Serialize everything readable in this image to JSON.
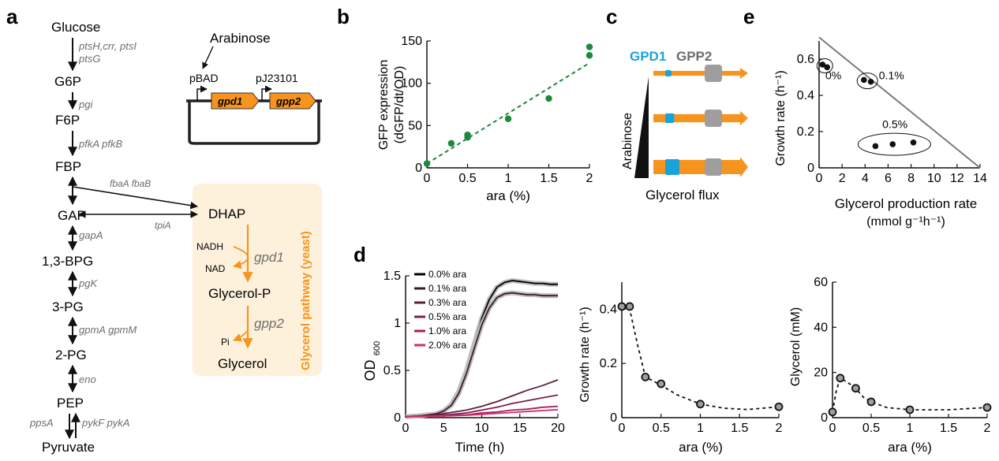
{
  "panels": {
    "a": "a",
    "b": "b",
    "c": "c",
    "d": "d",
    "e": "e"
  },
  "pathway": {
    "metabolites": [
      "Glucose",
      "G6P",
      "F6P",
      "FBP",
      "GAP",
      "1,3-BPG",
      "3-PG",
      "2-PG",
      "PEP",
      "Pyruvate"
    ],
    "enzymes": [
      "ptsH,crr, ptsI",
      "ptsG",
      "pgi",
      "pfkA pfkB",
      "gapA",
      "pgK",
      "gpmA gpmM",
      "eno",
      "ppsA",
      "pykF  pykA"
    ],
    "fba": "fbaA fbaB",
    "tpi": "tpiA",
    "dhap": "DHAP",
    "nadh": "NADH",
    "nad": "NAD",
    "gpd1": "gpd1",
    "glycerol_p": "Glycerol-P",
    "pi": "Pi",
    "gpp2": "gpp2",
    "glycerol": "Glycerol",
    "yeast_label": "Glycerol pathway (yeast)"
  },
  "plasmid": {
    "inducer": "Arabinose",
    "promoter1": "pBAD",
    "promoter2": "pJ23101",
    "gene1": "gpd1",
    "gene2": "gpp2"
  },
  "colors": {
    "green": "#1a8a3c",
    "orange": "#f7941d",
    "yeast_bg": "#fdf1dc",
    "gpd1_blue": "#1aa3d9",
    "gpp2_gray": "#9e9e9e",
    "enzyme_gray": "#6d6d6d",
    "line_gray": "#7a7a7a",
    "magenta_dark": "#5a1a3c",
    "magenta": "#c2185b"
  },
  "panel_c": {
    "gpd1_label": "GPD1",
    "gpp2_label": "GPP2",
    "arabinose_label": "Arabinose",
    "flux_label": "Glycerol flux",
    "gpd1_levels": [
      0.15,
      0.45,
      1.0
    ]
  },
  "chart_data": [
    {
      "id": "b",
      "type": "scatter",
      "ylabel_line1": "GFP expression",
      "ylabel_line2": "(dGFP/dt/OD)",
      "xlabel": "ara (%)",
      "xlim": [
        0,
        2
      ],
      "ylim": [
        0,
        150
      ],
      "xticks": [
        "0",
        "0.5",
        "1",
        "1.5",
        "2"
      ],
      "xtick_values": [
        0,
        0.5,
        1,
        1.5,
        2
      ],
      "yticks": [
        "0",
        "50",
        "100",
        "150"
      ],
      "ytick_values": [
        0,
        50,
        100,
        150
      ],
      "points": [
        [
          0,
          5
        ],
        [
          0.3,
          29
        ],
        [
          0.5,
          36
        ],
        [
          0.5,
          39
        ],
        [
          1,
          58
        ],
        [
          1.5,
          82
        ],
        [
          2,
          133
        ],
        [
          2,
          143
        ]
      ],
      "fit": [
        [
          0,
          5
        ],
        [
          2,
          124
        ]
      ]
    },
    {
      "id": "e",
      "type": "scatter",
      "ylabel": "Growth rate (h⁻¹)",
      "xlabel_line1": "Glycerol production rate",
      "xlabel_line2": "(mmol g⁻¹h⁻¹)",
      "xlim": [
        0,
        14
      ],
      "ylim": [
        0,
        0.7
      ],
      "xticks": [
        "0",
        "2",
        "4",
        "6",
        "8",
        "10",
        "12",
        "14"
      ],
      "xtick_values": [
        0,
        2,
        4,
        6,
        8,
        10,
        12,
        14
      ],
      "yticks": [
        "0",
        "0.2",
        "0.4",
        "0.6"
      ],
      "ytick_values": [
        0,
        0.2,
        0.4,
        0.6
      ],
      "points": [
        [
          0.3,
          0.57
        ],
        [
          0.7,
          0.555
        ],
        [
          3.9,
          0.485
        ],
        [
          4.5,
          0.475
        ],
        [
          4.9,
          0.12
        ],
        [
          6.4,
          0.13
        ],
        [
          8.2,
          0.14
        ]
      ],
      "line": [
        [
          0,
          0.72
        ],
        [
          14,
          0
        ]
      ],
      "groups": [
        "0%",
        "0.1%",
        "0.5%"
      ]
    },
    {
      "id": "d1",
      "type": "line",
      "ylabel": "OD",
      "ylabel_sub": "600",
      "xlabel": "Time (h)",
      "xlim": [
        0,
        20
      ],
      "ylim": [
        0,
        1.5
      ],
      "xticks": [
        "0",
        "5",
        "10",
        "15",
        "20"
      ],
      "xtick_values": [
        0,
        5,
        10,
        15,
        20
      ],
      "yticks": [
        "0",
        "0.5",
        "1",
        "1.5"
      ],
      "ytick_values": [
        0,
        0.5,
        1,
        1.5
      ],
      "series": [
        {
          "name": "0.0% ara",
          "color": "#000000",
          "x": [
            0,
            2,
            4,
            5,
            6,
            7,
            8,
            9,
            10,
            11,
            12,
            13,
            14,
            15,
            16,
            17,
            18,
            19,
            20
          ],
          "values": [
            0.01,
            0.02,
            0.04,
            0.07,
            0.14,
            0.28,
            0.5,
            0.78,
            1.05,
            1.25,
            1.38,
            1.43,
            1.45,
            1.44,
            1.43,
            1.42,
            1.42,
            1.41,
            1.41
          ]
        },
        {
          "name": "0.1% ara",
          "color": "#3a1a2a",
          "x": [
            0,
            2,
            4,
            5,
            6,
            7,
            8,
            9,
            10,
            11,
            12,
            13,
            14,
            15,
            16,
            17,
            18,
            19,
            20
          ],
          "values": [
            0.01,
            0.02,
            0.04,
            0.07,
            0.13,
            0.26,
            0.47,
            0.73,
            0.98,
            1.16,
            1.27,
            1.31,
            1.32,
            1.31,
            1.3,
            1.3,
            1.29,
            1.29,
            1.29
          ]
        },
        {
          "name": "0.3% ara",
          "color": "#5c1e3e",
          "x": [
            0,
            4,
            8,
            10,
            12,
            14,
            16,
            18,
            20
          ],
          "values": [
            0.01,
            0.03,
            0.08,
            0.12,
            0.17,
            0.23,
            0.29,
            0.34,
            0.4
          ]
        },
        {
          "name": "0.5% ara",
          "color": "#7d1f4c",
          "x": [
            0,
            4,
            8,
            10,
            12,
            14,
            16,
            18,
            20
          ],
          "values": [
            0.01,
            0.02,
            0.05,
            0.08,
            0.11,
            0.15,
            0.18,
            0.21,
            0.24
          ]
        },
        {
          "name": "1.0% ara",
          "color": "#a5215a",
          "x": [
            0,
            4,
            8,
            10,
            12,
            14,
            16,
            18,
            20
          ],
          "values": [
            0.01,
            0.02,
            0.03,
            0.05,
            0.06,
            0.08,
            0.09,
            0.11,
            0.12
          ]
        },
        {
          "name": "2.0% ara",
          "color": "#cf2e6e",
          "x": [
            0,
            4,
            8,
            10,
            12,
            14,
            16,
            18,
            20
          ],
          "values": [
            0.01,
            0.015,
            0.025,
            0.035,
            0.045,
            0.055,
            0.065,
            0.075,
            0.085
          ]
        }
      ]
    },
    {
      "id": "d2",
      "type": "line",
      "ylabel": "Growth rate (h⁻¹)",
      "xlabel": "ara (%)",
      "xlim": [
        0,
        2
      ],
      "ylim": [
        0,
        0.5
      ],
      "xticks": [
        "0",
        "0.5",
        "1",
        "1.5",
        "2"
      ],
      "xtick_values": [
        0,
        0.5,
        1,
        1.5,
        2
      ],
      "yticks": [
        "0",
        "0.2",
        "0.4"
      ],
      "ytick_values": [
        0,
        0.2,
        0.4
      ],
      "points": [
        [
          0,
          0.41
        ],
        [
          0.1,
          0.41
        ],
        [
          0.3,
          0.15
        ],
        [
          0.5,
          0.125
        ],
        [
          1,
          0.05
        ],
        [
          2,
          0.04
        ]
      ],
      "curve": [
        [
          0,
          0.41
        ],
        [
          0.1,
          0.4
        ],
        [
          0.2,
          0.27
        ],
        [
          0.3,
          0.15
        ],
        [
          0.5,
          0.12
        ],
        [
          0.7,
          0.085
        ],
        [
          1,
          0.05
        ],
        [
          1.3,
          0.035
        ],
        [
          1.6,
          0.03
        ],
        [
          2,
          0.04
        ]
      ]
    },
    {
      "id": "d3",
      "type": "line",
      "ylabel": "Glycerol (mM)",
      "xlabel": "ara (%)",
      "xlim": [
        0,
        2
      ],
      "ylim": [
        0,
        60
      ],
      "xticks": [
        "0",
        "0.5",
        "1",
        "1.5",
        "2"
      ],
      "xtick_values": [
        0,
        0.5,
        1,
        1.5,
        2
      ],
      "yticks": [
        "0",
        "20",
        "40",
        "60"
      ],
      "ytick_values": [
        0,
        20,
        40,
        60
      ],
      "points": [
        [
          0,
          2.5
        ],
        [
          0.1,
          17.5
        ],
        [
          0.3,
          13
        ],
        [
          0.5,
          7
        ],
        [
          1,
          3.5
        ],
        [
          2,
          4.5
        ]
      ],
      "curve": [
        [
          0,
          2.5
        ],
        [
          0.05,
          12
        ],
        [
          0.1,
          17.5
        ],
        [
          0.2,
          15.5
        ],
        [
          0.3,
          13
        ],
        [
          0.4,
          9
        ],
        [
          0.5,
          7
        ],
        [
          0.7,
          4.5
        ],
        [
          1,
          3.5
        ],
        [
          1.5,
          3.5
        ],
        [
          2,
          4.5
        ]
      ]
    }
  ]
}
